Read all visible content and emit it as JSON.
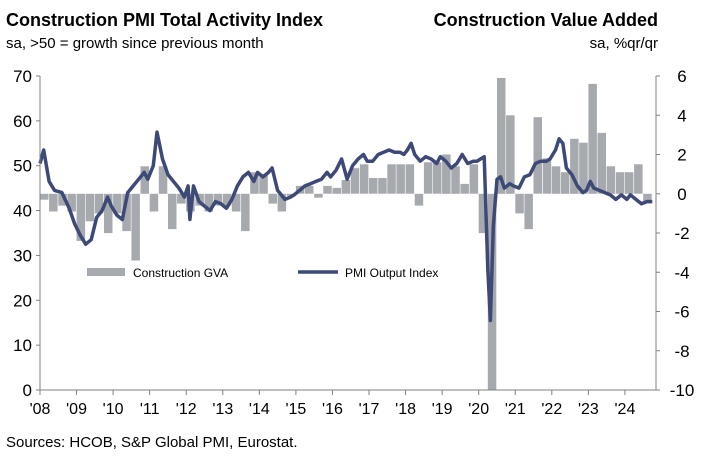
{
  "header": {
    "left_title": "Construction PMI Total Activity Index",
    "left_subtitle": "sa, >50 = growth since previous month",
    "right_title": "Construction Value Added",
    "right_subtitle": "sa, %qr/qr"
  },
  "source": "Sources: HCOB, S&P Global PMI, Eurostat.",
  "colors": {
    "pmi_line": "#3d4a78",
    "gva_bar": "#a6a9ad",
    "axis": "#808080"
  },
  "chart_data": {
    "type": "bar+line",
    "x_labels": [
      "'08",
      "'09",
      "'10",
      "'11",
      "'12",
      "'13",
      "'14",
      "'15",
      "'16",
      "'17",
      "'18",
      "'19",
      "'20",
      "'21",
      "'22",
      "'23",
      "'24"
    ],
    "x_range": [
      2008.0,
      2024.85
    ],
    "left_axis": {
      "ylim": [
        0,
        70
      ],
      "ticks": [
        0,
        10,
        20,
        30,
        40,
        50,
        60,
        70
      ]
    },
    "right_axis": {
      "ylim": [
        -10,
        6
      ],
      "ticks": [
        -10,
        -8,
        -6,
        -4,
        -2,
        0,
        2,
        4,
        6
      ]
    },
    "legend": {
      "position": "middle-left",
      "entries": [
        "Construction GVA",
        "PMI Output Index"
      ]
    },
    "series": [
      {
        "name": "Construction GVA",
        "type": "bar",
        "axis": "right",
        "unit": "%qr/qr",
        "quarters": [
          "2008Q1",
          "2008Q2",
          "2008Q3",
          "2008Q4",
          "2009Q1",
          "2009Q2",
          "2009Q3",
          "2009Q4",
          "2010Q1",
          "2010Q2",
          "2010Q3",
          "2010Q4",
          "2011Q1",
          "2011Q2",
          "2011Q3",
          "2011Q4",
          "2012Q1",
          "2012Q2",
          "2012Q3",
          "2012Q4",
          "2013Q1",
          "2013Q2",
          "2013Q3",
          "2013Q4",
          "2014Q1",
          "2014Q2",
          "2014Q3",
          "2014Q4",
          "2015Q1",
          "2015Q2",
          "2015Q3",
          "2015Q4",
          "2016Q1",
          "2016Q2",
          "2016Q3",
          "2016Q4",
          "2017Q1",
          "2017Q2",
          "2017Q3",
          "2017Q4",
          "2018Q1",
          "2018Q2",
          "2018Q3",
          "2018Q4",
          "2019Q1",
          "2019Q2",
          "2019Q3",
          "2019Q4",
          "2020Q1",
          "2020Q2",
          "2020Q3",
          "2020Q4",
          "2021Q1",
          "2021Q2",
          "2021Q3",
          "2021Q4",
          "2022Q1",
          "2022Q2",
          "2022Q3",
          "2022Q4",
          "2023Q1",
          "2023Q2",
          "2023Q3",
          "2023Q4",
          "2024Q1",
          "2024Q2",
          "2024Q3"
        ],
        "values": [
          -0.3,
          -0.9,
          -0.6,
          -0.9,
          -2.4,
          -1.4,
          -1.0,
          -2.0,
          -1.0,
          -1.9,
          -3.4,
          1.4,
          -0.9,
          1.4,
          -1.8,
          -0.5,
          -0.9,
          -0.6,
          -0.9,
          -0.6,
          -0.6,
          -0.9,
          -1.9,
          1.1,
          1.0,
          -0.5,
          -0.9,
          -0.1,
          0.4,
          0.4,
          -0.2,
          0.4,
          0.3,
          0.7,
          1.3,
          1.5,
          0.8,
          0.8,
          1.5,
          1.5,
          1.5,
          -0.6,
          1.6,
          1.6,
          2.0,
          1.4,
          0.5,
          1.5,
          -2.0,
          -10.0,
          5.9,
          4.0,
          -1.0,
          -1.8,
          3.9,
          1.8,
          1.4,
          1.1,
          2.8,
          2.6,
          5.6,
          3.1,
          1.4,
          1.1,
          1.1,
          1.5,
          -0.4
        ]
      },
      {
        "name": "PMI Output Index",
        "type": "line",
        "axis": "left",
        "unit": "index",
        "points": [
          [
            2008.0,
            50.5
          ],
          [
            2008.1,
            53.5
          ],
          [
            2008.25,
            46.5
          ],
          [
            2008.4,
            44.5
          ],
          [
            2008.6,
            44.0
          ],
          [
            2008.8,
            40.5
          ],
          [
            2008.95,
            37.0
          ],
          [
            2009.1,
            34.5
          ],
          [
            2009.25,
            32.5
          ],
          [
            2009.4,
            33.5
          ],
          [
            2009.55,
            38.5
          ],
          [
            2009.7,
            40.0
          ],
          [
            2009.85,
            43.0
          ],
          [
            2009.95,
            41.0
          ],
          [
            2010.1,
            39.0
          ],
          [
            2010.25,
            38.0
          ],
          [
            2010.4,
            44.0
          ],
          [
            2010.55,
            45.5
          ],
          [
            2010.7,
            47.0
          ],
          [
            2010.85,
            48.5
          ],
          [
            2010.95,
            47.0
          ],
          [
            2011.1,
            50.0
          ],
          [
            2011.2,
            57.5
          ],
          [
            2011.35,
            51.5
          ],
          [
            2011.5,
            48.0
          ],
          [
            2011.65,
            46.5
          ],
          [
            2011.8,
            45.0
          ],
          [
            2011.95,
            43.0
          ],
          [
            2012.05,
            45.5
          ],
          [
            2012.1,
            38.0
          ],
          [
            2012.2,
            45.5
          ],
          [
            2012.35,
            42.0
          ],
          [
            2012.5,
            41.0
          ],
          [
            2012.65,
            40.0
          ],
          [
            2012.8,
            42.0
          ],
          [
            2012.95,
            41.5
          ],
          [
            2013.1,
            40.5
          ],
          [
            2013.25,
            42.5
          ],
          [
            2013.4,
            45.5
          ],
          [
            2013.55,
            47.5
          ],
          [
            2013.7,
            48.5
          ],
          [
            2013.85,
            46.5
          ],
          [
            2013.95,
            48.5
          ],
          [
            2014.1,
            47.5
          ],
          [
            2014.25,
            48.5
          ],
          [
            2014.35,
            49.5
          ],
          [
            2014.5,
            44.5
          ],
          [
            2014.7,
            42.5
          ],
          [
            2014.85,
            43.0
          ],
          [
            2014.95,
            43.5
          ],
          [
            2015.1,
            44.5
          ],
          [
            2015.25,
            45.5
          ],
          [
            2015.4,
            46.0
          ],
          [
            2015.55,
            46.5
          ],
          [
            2015.7,
            47.0
          ],
          [
            2015.85,
            48.5
          ],
          [
            2015.95,
            47.5
          ],
          [
            2016.1,
            49.0
          ],
          [
            2016.25,
            51.5
          ],
          [
            2016.4,
            47.0
          ],
          [
            2016.55,
            50.0
          ],
          [
            2016.7,
            51.5
          ],
          [
            2016.85,
            52.5
          ],
          [
            2016.95,
            51.0
          ],
          [
            2017.1,
            51.0
          ],
          [
            2017.25,
            52.5
          ],
          [
            2017.4,
            53.0
          ],
          [
            2017.55,
            53.5
          ],
          [
            2017.7,
            53.0
          ],
          [
            2017.85,
            53.0
          ],
          [
            2017.95,
            52.5
          ],
          [
            2018.05,
            53.5
          ],
          [
            2018.15,
            55.0
          ],
          [
            2018.25,
            52.5
          ],
          [
            2018.4,
            51.0
          ],
          [
            2018.55,
            52.0
          ],
          [
            2018.7,
            51.5
          ],
          [
            2018.85,
            50.5
          ],
          [
            2018.95,
            52.0
          ],
          [
            2019.1,
            51.0
          ],
          [
            2019.25,
            49.5
          ],
          [
            2019.4,
            50.5
          ],
          [
            2019.55,
            52.5
          ],
          [
            2019.7,
            50.5
          ],
          [
            2019.85,
            51.0
          ],
          [
            2019.95,
            51.0
          ],
          [
            2020.05,
            51.5
          ],
          [
            2020.15,
            52.0
          ],
          [
            2020.25,
            27.0
          ],
          [
            2020.32,
            15.5
          ],
          [
            2020.4,
            36.5
          ],
          [
            2020.5,
            47.0
          ],
          [
            2020.6,
            47.5
          ],
          [
            2020.7,
            45.0
          ],
          [
            2020.85,
            46.0
          ],
          [
            2020.95,
            45.5
          ],
          [
            2021.1,
            45.0
          ],
          [
            2021.25,
            47.5
          ],
          [
            2021.4,
            48.0
          ],
          [
            2021.55,
            50.5
          ],
          [
            2021.7,
            51.0
          ],
          [
            2021.85,
            51.0
          ],
          [
            2021.95,
            51.5
          ],
          [
            2022.1,
            53.5
          ],
          [
            2022.2,
            56.0
          ],
          [
            2022.3,
            55.0
          ],
          [
            2022.4,
            49.5
          ],
          [
            2022.55,
            48.0
          ],
          [
            2022.7,
            45.5
          ],
          [
            2022.85,
            44.0
          ],
          [
            2022.95,
            44.5
          ],
          [
            2023.05,
            46.5
          ],
          [
            2023.15,
            45.0
          ],
          [
            2023.3,
            44.5
          ],
          [
            2023.45,
            44.0
          ],
          [
            2023.6,
            43.5
          ],
          [
            2023.75,
            42.5
          ],
          [
            2023.9,
            43.5
          ],
          [
            2024.05,
            42.5
          ],
          [
            2024.15,
            43.5
          ],
          [
            2024.3,
            42.5
          ],
          [
            2024.45,
            41.5
          ],
          [
            2024.6,
            42.0
          ],
          [
            2024.75,
            42.0
          ]
        ]
      }
    ]
  }
}
